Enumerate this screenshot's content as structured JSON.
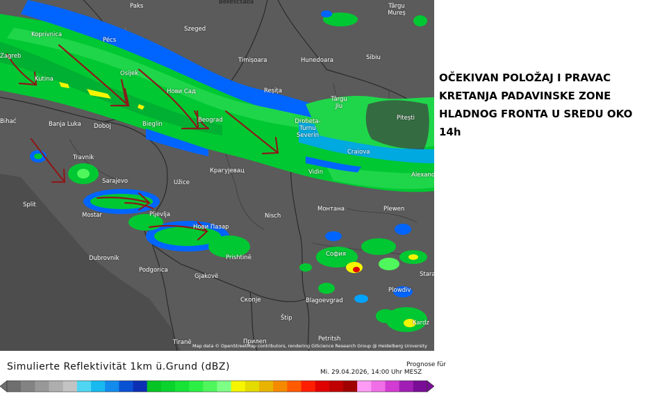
{
  "headline": "OČEKIVAN POLOŽAJ I PRAVAC KRETANJA PADAVINSKE ZONE HLADNOG FRONTA U SREDU OKO 14h",
  "legend": {
    "title": "Simulierte Reflektivität 1km ü.Grund (dBZ)",
    "forecast_label": "Prognose für",
    "forecast_date": "Mi. 29.04.2026, 14:00 Uhr MESZ"
  },
  "attribution": "Map data © OpenStreetMap contributors, rendering GIScience Research Group @ Heidelberg University",
  "cities": {
    "paks": "Paks",
    "bekescsaba": "Bekescsaba",
    "targu_mures": "Târgu Mureș",
    "koprivnica": "Koprivnica",
    "szeged": "Szeged",
    "pecs": "Pécs",
    "timisoara": "Timișoara",
    "hunedoara": "Hunedoara",
    "sibiu": "Sibiu",
    "zagreb": "Zagreb",
    "osijek": "Osijek",
    "kutina": "Kutina",
    "novi_sad": "Нови Сад",
    "resita": "Reșița",
    "targu_jiu": "Târgu Jiu",
    "pitesti": "Pitești",
    "bihac": "Bihać",
    "banja_luka": "Banja Luka",
    "doboj": "Doboj",
    "bijeljina": "Bieglin",
    "beograd": "Beograd",
    "drobeta": "Drobeta-Turnu Severin",
    "travnik": "Travnik",
    "kragujevac": "Крагујевац",
    "craiova": "Craiova",
    "vidin": "Vidin",
    "alexandria": "Alexand",
    "sarajevo": "Sarajevo",
    "uzice": "Užice",
    "split": "Split",
    "mostar": "Mostar",
    "pljevlja": "Pljevlja",
    "novi_pazar": "Нови Пазар",
    "nis": "Nisch",
    "montana": "Монтана",
    "pleven": "Plewen",
    "dubrovnik": "Dubrovnik",
    "pristina": "Prishtinë",
    "sofia": "София",
    "podgorica": "Podgorica",
    "gjakove": "Gjakovë",
    "stara": "Stara",
    "skopje": "Скопје",
    "blagoevgrad": "Blagoevgrad",
    "plovdiv": "Plowdiv",
    "stip": "Štip",
    "kardzhali": "Kardz",
    "tirana": "Tiranë",
    "prilep": "Прилеп",
    "petrich": "Petritsh"
  },
  "colors": {
    "map_background": "#5b5b5b",
    "light_precip": "#00c832",
    "moderate_precip": "#0064ff",
    "arrows": "#8b1a1a"
  },
  "colorbar_colors": [
    "#6e6e6e",
    "#838383",
    "#989898",
    "#aeaeae",
    "#c3c3c3",
    "#4fd6f2",
    "#18b9ee",
    "#128bec",
    "#0a52d4",
    "#0c2fb3",
    "#06c423",
    "#0ad32d",
    "#17e236",
    "#2bef44",
    "#4ff75c",
    "#7eff85",
    "#f5f500",
    "#e4db00",
    "#e8b400",
    "#f58a00",
    "#ff5a00",
    "#ff1e00",
    "#e00000",
    "#c00000",
    "#a00000",
    "#ff9bf5",
    "#f06ee6",
    "#d23cd2",
    "#a01eb4",
    "#7a0d96"
  ]
}
